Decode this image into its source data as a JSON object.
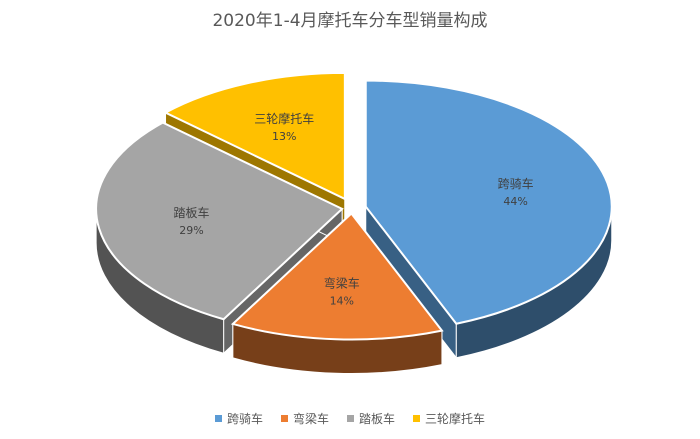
{
  "chart_data": {
    "type": "pie",
    "title": "2020年1-4月摩托车分车型销量构成",
    "categories": [
      "跨骑车",
      "弯梁车",
      "踏板车",
      "三轮摩托车"
    ],
    "values": [
      44,
      14,
      29,
      13
    ],
    "value_labels": [
      "44%",
      "14%",
      "29%",
      "13%"
    ],
    "colors": [
      "#5b9bd5",
      "#ed7d31",
      "#a5a5a5",
      "#ffc000"
    ],
    "legend_position": "bottom",
    "style": "3d-exploded"
  }
}
